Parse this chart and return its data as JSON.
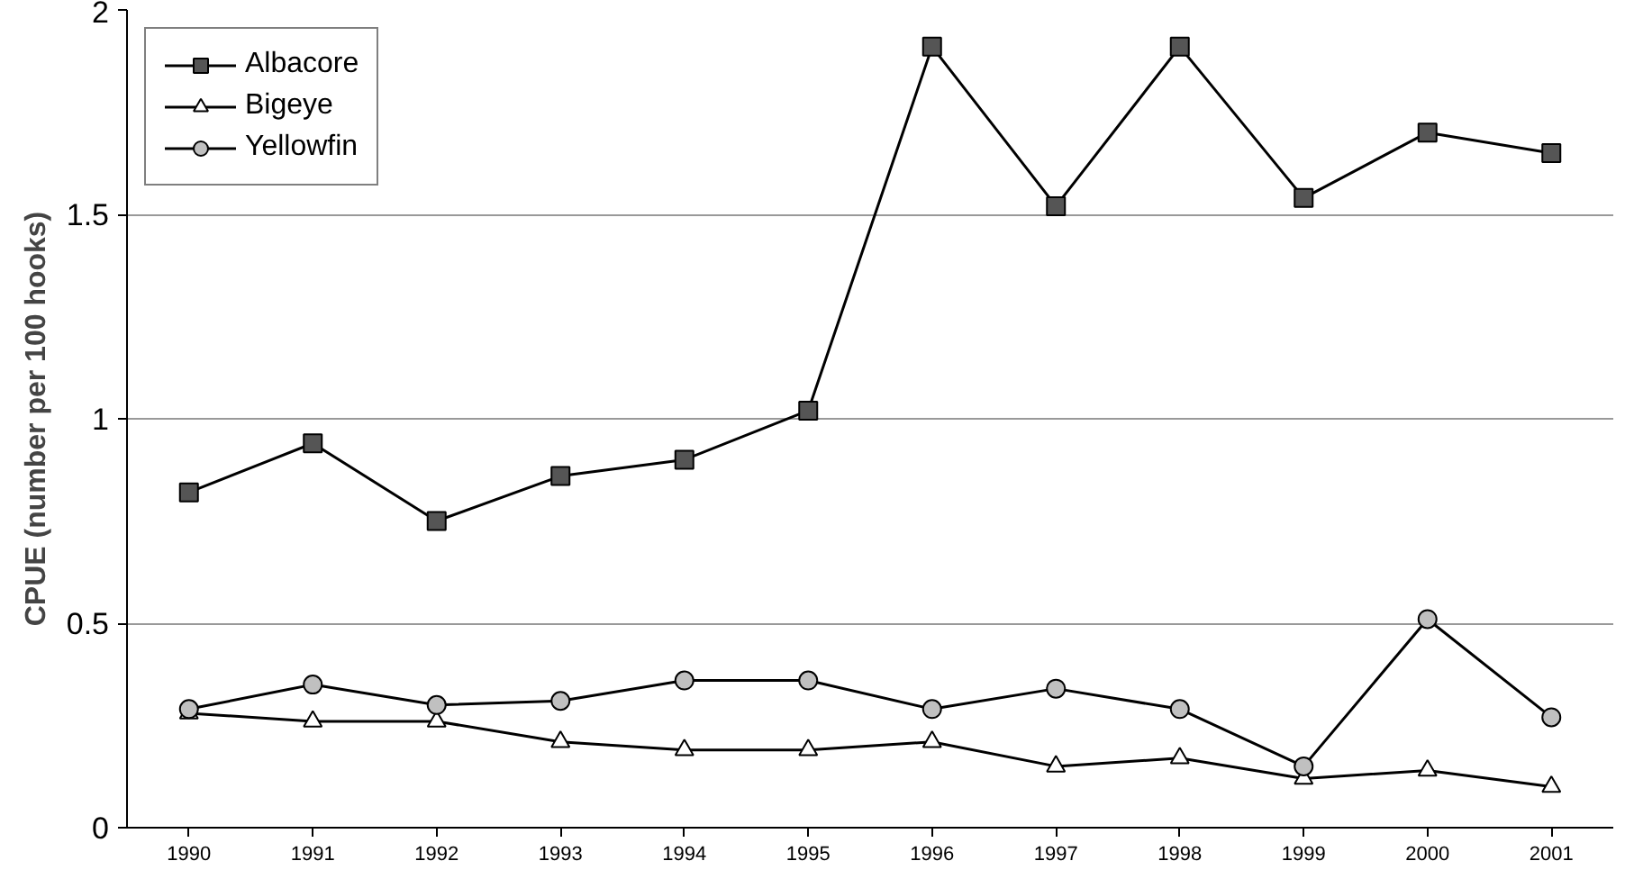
{
  "chart_data": {
    "type": "line",
    "ylabel": "CPUE (number per 100 hooks)",
    "categories": [
      "1990",
      "1991",
      "1992",
      "1993",
      "1994",
      "1995",
      "1996",
      "1997",
      "1998",
      "1999",
      "2000",
      "2001"
    ],
    "series": [
      {
        "name": "Albacore",
        "color": "#000000",
        "marker": "square",
        "values": [
          0.82,
          0.94,
          0.75,
          0.86,
          0.9,
          1.02,
          1.91,
          1.52,
          1.91,
          1.54,
          1.7,
          1.65
        ]
      },
      {
        "name": "Bigeye",
        "color": "#000000",
        "marker": "triangle",
        "values": [
          0.28,
          0.26,
          0.26,
          0.21,
          0.19,
          0.19,
          0.21,
          0.15,
          0.17,
          0.12,
          0.14,
          0.1
        ]
      },
      {
        "name": "Yellowfin",
        "color": "#000000",
        "marker": "circle",
        "values": [
          0.29,
          0.35,
          0.3,
          0.31,
          0.36,
          0.36,
          0.29,
          0.34,
          0.29,
          0.15,
          0.51,
          0.27
        ]
      }
    ],
    "ylim": [
      0,
      2
    ],
    "yticks": [
      0,
      0.5,
      1,
      1.5,
      2
    ],
    "grid": "y",
    "legend": "top left",
    "line_style": "solid"
  }
}
